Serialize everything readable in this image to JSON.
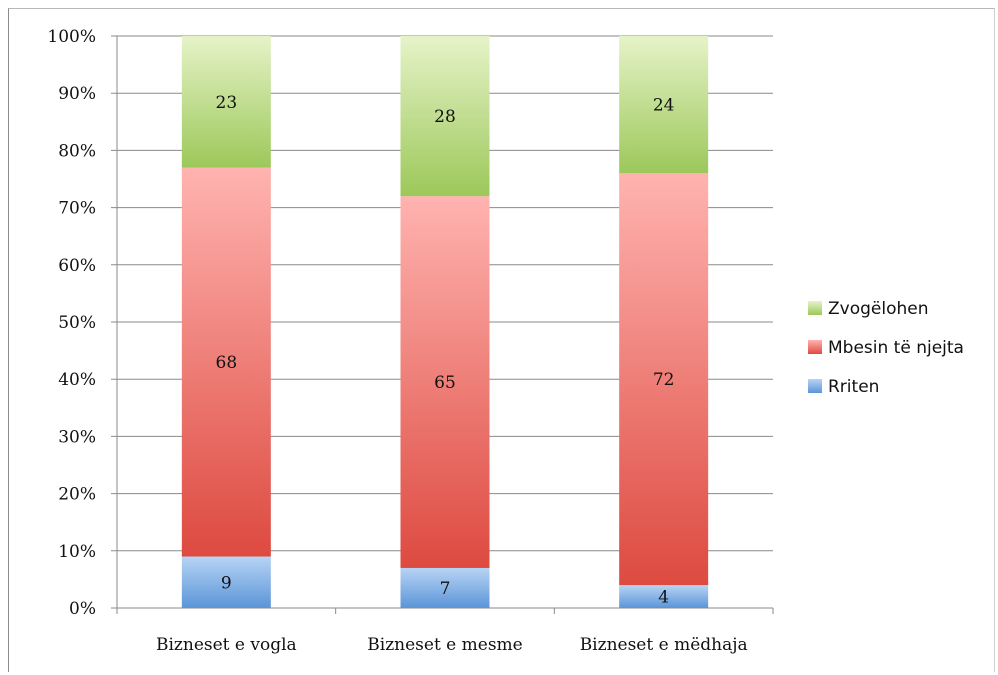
{
  "chart_data": {
    "type": "bar",
    "stacked": true,
    "percent": true,
    "categories": [
      "Bizneset e vogla",
      "Bizneset e mesme",
      "Bizneset e mëdhaja"
    ],
    "series": [
      {
        "name": "Rriten",
        "values": [
          9,
          7,
          4
        ],
        "color": "#5b9bd5"
      },
      {
        "name": "Mbesin të njejta",
        "values": [
          68,
          65,
          72
        ],
        "color": "#e35b52"
      },
      {
        "name": "Zvogëlohen",
        "values": [
          23,
          28,
          24
        ],
        "color": "#9bc957"
      }
    ],
    "y_ticks": [
      "0%",
      "10%",
      "20%",
      "30%",
      "40%",
      "50%",
      "60%",
      "70%",
      "80%",
      "90%",
      "100%"
    ],
    "ylim": [
      0,
      100
    ],
    "grid": true,
    "legend_position": "right",
    "legend_order": [
      "Zvogëlohen",
      "Mbesin të njejta",
      "Rriten"
    ]
  }
}
